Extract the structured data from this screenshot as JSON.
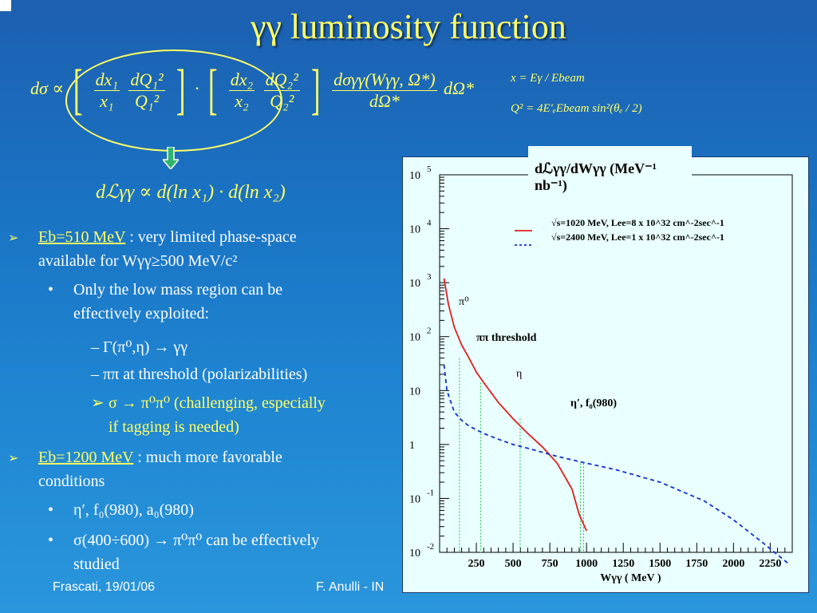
{
  "title": "γγ luminosity function",
  "formulas": {
    "main_lhs": "dσ ∝",
    "f1_num": "dx₁",
    "f1_den": "x₁",
    "f2_num": "dQ₁²",
    "f2_den": "Q₁²",
    "f3_num": "dx₂",
    "f3_den": "x₂",
    "f4_num": "dQ₂²",
    "f4_den": "Q₂²",
    "cs_num": "dσγγ(Wγγ, Ω*)",
    "cs_den": "dΩ*",
    "dot": "·",
    "tail": "dΩ*",
    "lum": "dℒγγ ∝ d(ln x₁) · d(ln x₂)",
    "x_def": "x  = Eγ / Ebeam",
    "q_def": "Q² = 4E'ₑEbeam sin²(θₑ / 2)"
  },
  "bullets": [
    {
      "marker": "➢",
      "link": "Eb=510 MeV",
      "text": " : very limited phase-space",
      "text2": "available for Wγγ≥500 MeV/c²"
    },
    {
      "marker": "•",
      "text": "Only the low mass region can be",
      "text2": "effectively exploited:"
    },
    {
      "marker": "–",
      "text": "Γ(π⁰,η) → γγ"
    },
    {
      "marker": "–",
      "text": "ππ at threshold (polarizabilities)"
    },
    {
      "marker": "➢",
      "text": "σ → π⁰π⁰ (challenging, especially",
      "text2": "if tagging is needed)"
    },
    {
      "marker": "➢",
      "link": "Eb=1200 MeV",
      "text": " : much more favorable",
      "text2": "conditions"
    },
    {
      "marker": "•",
      "text": "η′, f₀(980), a₀(980)"
    },
    {
      "marker": "•",
      "text": "σ(400÷600) → π⁰π⁰  can be effectively",
      "text2": "studied"
    }
  ],
  "footer": {
    "left": "Frascati, 19/01/06",
    "center": "F. Anulli  - IN"
  },
  "chart_data": {
    "type": "line",
    "ylabel": "dℒγγ/dWγγ (MeV⁻¹ nb⁻¹)",
    "xlabel": "Wγγ ( MeV )",
    "xlim": [
      0,
      2400
    ],
    "ylim_log10": [
      -2,
      5
    ],
    "xticks": [
      250,
      500,
      750,
      1000,
      1250,
      1500,
      1750,
      2000,
      2250
    ],
    "yticks": [
      "10^5",
      "10^4",
      "10^3",
      "10^2",
      "10",
      "1",
      "10^-1",
      "10^-2"
    ],
    "series": [
      {
        "name": "√s=1020 MeV, Lee=8 x 10^32 cm^-2sec^-1",
        "style": "solid",
        "color": "#e02020",
        "x": [
          30,
          60,
          100,
          150,
          200,
          250,
          300,
          400,
          500,
          600,
          700,
          800,
          900,
          950,
          1000
        ],
        "y": [
          1200,
          400,
          150,
          70,
          40,
          22,
          14,
          6,
          3,
          1.6,
          0.9,
          0.45,
          0.15,
          0.05,
          0.025
        ]
      },
      {
        "name": "√s=2400 MeV, Lee=1 x 10^32 cm^-2sec^-1",
        "style": "dashed",
        "color": "#1030d0",
        "x": [
          30,
          50,
          100,
          150,
          200,
          300,
          400,
          500,
          600,
          800,
          1000,
          1200,
          1500,
          1800,
          2000,
          2200,
          2300,
          2380
        ],
        "y": [
          30,
          10,
          4,
          2.8,
          2.2,
          1.6,
          1.25,
          1.0,
          0.85,
          0.6,
          0.45,
          0.34,
          0.2,
          0.09,
          0.04,
          0.015,
          0.009,
          0.006
        ]
      }
    ],
    "annotations": [
      {
        "text": "π⁰",
        "x": 130
      },
      {
        "text": "ππ threshold",
        "x": 280
      },
      {
        "text": "η",
        "x": 548
      },
      {
        "text": "η′, f₀(980)",
        "x": 960
      }
    ],
    "vlines_x": [
      135,
      280,
      548,
      958,
      980
    ]
  }
}
